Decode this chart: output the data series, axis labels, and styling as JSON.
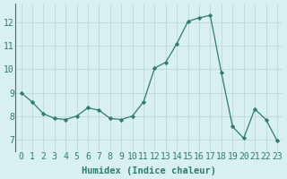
{
  "x": [
    0,
    1,
    2,
    3,
    4,
    5,
    6,
    7,
    8,
    9,
    10,
    11,
    12,
    13,
    14,
    15,
    16,
    17,
    18,
    19,
    20,
    21,
    22,
    23
  ],
  "y": [
    9.0,
    8.6,
    8.1,
    7.9,
    7.85,
    8.0,
    8.35,
    8.25,
    7.9,
    7.85,
    8.0,
    8.6,
    10.05,
    10.3,
    11.1,
    12.05,
    12.2,
    12.3,
    9.85,
    7.55,
    7.05,
    8.3,
    7.85,
    6.95
  ],
  "line_color": "#2d7d6e",
  "marker": "D",
  "marker_size": 2.2,
  "bg_color": "#d8f0ef",
  "grid_color": "#c0d8d5",
  "xlabel": "Humidex (Indice chaleur)",
  "xlabel_fontsize": 7.5,
  "tick_fontsize": 7,
  "ylim": [
    6.5,
    12.8
  ],
  "xlim": [
    -0.5,
    23.5
  ],
  "yticks": [
    7,
    8,
    9,
    10,
    11,
    12
  ],
  "xticks": [
    0,
    1,
    2,
    3,
    4,
    5,
    6,
    7,
    8,
    9,
    10,
    11,
    12,
    13,
    14,
    15,
    16,
    17,
    18,
    19,
    20,
    21,
    22,
    23
  ]
}
